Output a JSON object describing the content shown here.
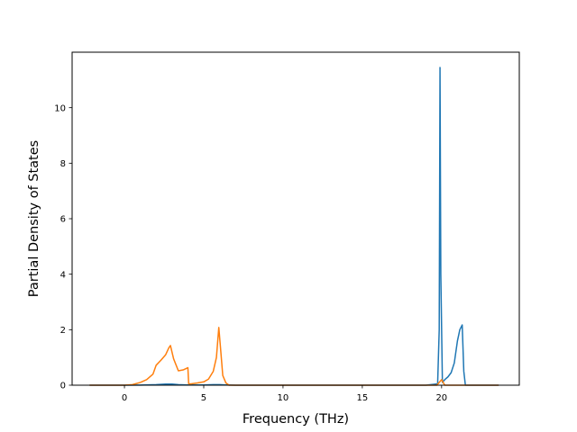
{
  "chart_data": {
    "type": "line",
    "title": "",
    "xlabel": "Frequency (THz)",
    "ylabel": "Partial Density of States",
    "xlim": [
      -3.3,
      24.9
    ],
    "ylim": [
      0,
      12.0
    ],
    "xticks": [
      0,
      5,
      10,
      15,
      20
    ],
    "yticks": [
      0,
      2,
      4,
      6,
      8,
      10
    ],
    "xtick_labels": [
      "0",
      "5",
      "10",
      "15",
      "20"
    ],
    "ytick_labels": [
      "0",
      "2",
      "4",
      "6",
      "8",
      "10"
    ],
    "grid": false,
    "legend": "none",
    "series": [
      {
        "color": "#1f77b4",
        "x": [
          -2.2,
          0.0,
          1.0,
          2.0,
          2.6,
          3.0,
          3.4,
          4.0,
          5.0,
          5.6,
          6.0,
          6.4,
          7.0,
          10.0,
          15.0,
          19.0,
          19.75,
          19.85,
          19.9,
          19.95,
          20.05,
          20.2,
          20.4,
          20.6,
          20.8,
          21.0,
          21.15,
          21.3,
          21.4,
          21.5,
          22.0,
          23.6
        ],
        "y": [
          0,
          0,
          0.005,
          0.02,
          0.04,
          0.04,
          0.02,
          0.01,
          0.01,
          0.02,
          0.02,
          0.01,
          0.0,
          0,
          0,
          0,
          0.05,
          2.0,
          11.45,
          4.0,
          0.1,
          0.2,
          0.3,
          0.45,
          0.8,
          1.6,
          2.0,
          2.17,
          0.5,
          0,
          0,
          0
        ]
      },
      {
        "color": "#ff7f0e",
        "x": [
          -2.2,
          0.0,
          0.5,
          1.0,
          1.4,
          1.8,
          2.0,
          2.3,
          2.6,
          2.8,
          2.9,
          3.1,
          3.4,
          3.7,
          4.0,
          4.05,
          4.2,
          4.6,
          5.0,
          5.3,
          5.6,
          5.8,
          5.95,
          6.05,
          6.2,
          6.4,
          6.6,
          7.0,
          10.0,
          15.0,
          19.7,
          19.85,
          20.0,
          20.2,
          23.6
        ],
        "y": [
          0,
          0,
          0.02,
          0.1,
          0.2,
          0.4,
          0.72,
          0.9,
          1.1,
          1.35,
          1.43,
          0.95,
          0.52,
          0.55,
          0.63,
          0.05,
          0.05,
          0.08,
          0.12,
          0.22,
          0.5,
          1.0,
          2.08,
          1.4,
          0.35,
          0.08,
          0.0,
          0,
          0,
          0,
          0,
          0.1,
          0.2,
          0.0,
          0
        ]
      }
    ]
  }
}
